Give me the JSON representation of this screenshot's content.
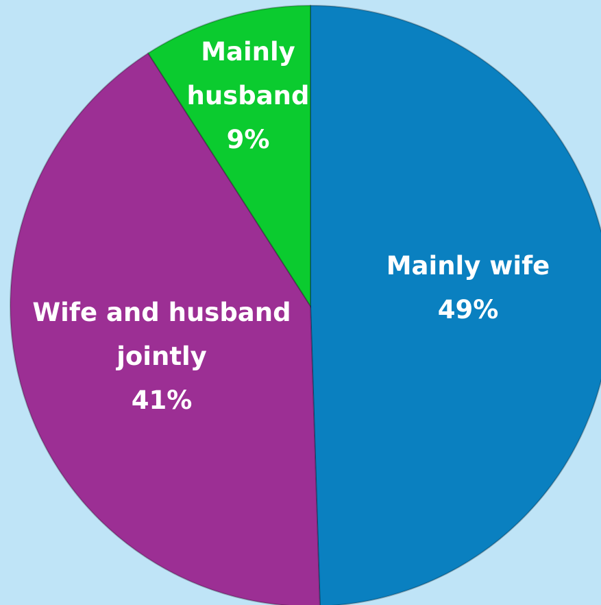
{
  "chart_data": {
    "type": "pie",
    "categories": [
      "Mainly wife",
      "Wife and husband jointly",
      "Mainly husband"
    ],
    "values": [
      49,
      41,
      9
    ],
    "value_labels": [
      "49%",
      "41%",
      "9%"
    ],
    "colors": [
      "#0a80c0",
      "#9c2f94",
      "#0bcb2f"
    ]
  }
}
